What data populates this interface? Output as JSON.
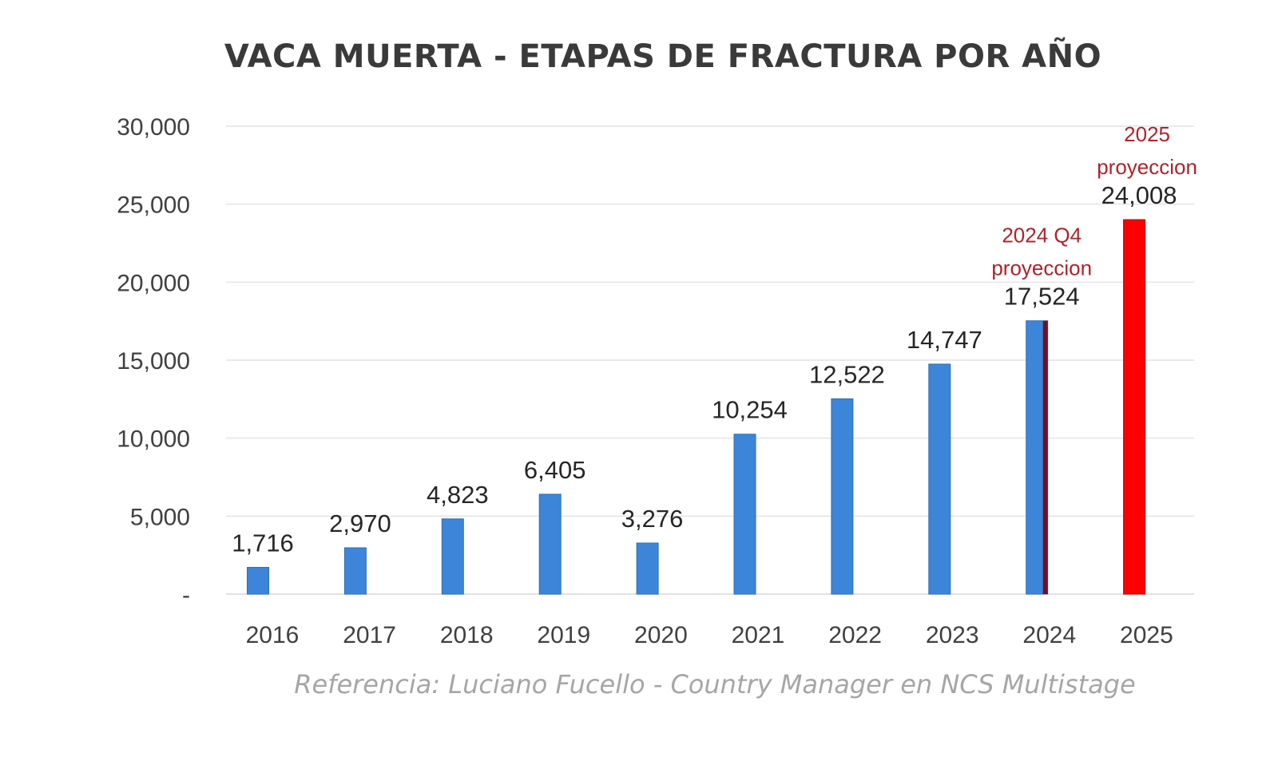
{
  "chart_data": {
    "type": "bar",
    "title": "VACA MUERTA - ETAPAS DE FRACTURA POR AÑO",
    "xlabel": "",
    "ylabel": "",
    "ylim": [
      0,
      30000
    ],
    "grid": true,
    "y_ticks": [
      "-",
      "5,000",
      "10,000",
      "15,000",
      "20,000",
      "25,000",
      "30,000"
    ],
    "y_tick_values": [
      0,
      5000,
      10000,
      15000,
      20000,
      25000,
      30000
    ],
    "categories": [
      "2016",
      "2017",
      "2018",
      "2019",
      "2020",
      "2021",
      "2022",
      "2023",
      "2024",
      "2025"
    ],
    "values": [
      1716,
      2970,
      4823,
      6405,
      3276,
      10254,
      12522,
      14747,
      17524,
      24008
    ],
    "value_labels": [
      "1,716",
      "2,970",
      "4,823",
      "6,405",
      "3,276",
      "10,254",
      "12,522",
      "14,747",
      "17,524",
      "24,008"
    ],
    "bar_colors": [
      "#3d85d8",
      "#3d85d8",
      "#3d85d8",
      "#3d85d8",
      "#3d85d8",
      "#3d85d8",
      "#3d85d8",
      "#3d85d8",
      "#3d85d8",
      "#ff0000"
    ],
    "annotations": [
      {
        "category": "2024",
        "lines": [
          "2024 Q4",
          "proyeccion"
        ],
        "color": "#b0222a"
      },
      {
        "category": "2025",
        "lines": [
          "2025",
          "proyeccion"
        ],
        "color": "#b0222a"
      }
    ],
    "projection_edge_color": "#6b1326"
  },
  "footer": {
    "reference": "Referencia: Luciano Fucello - Country Manager en NCS Multistage"
  }
}
